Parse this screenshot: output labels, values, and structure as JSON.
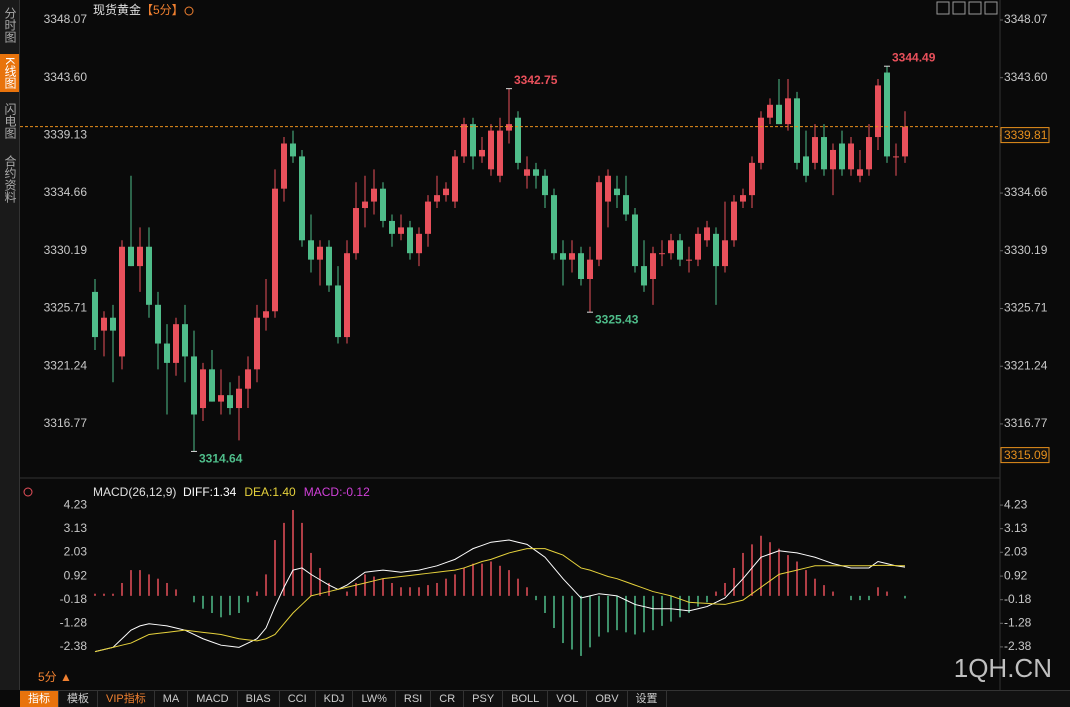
{
  "sidebar": [
    "分时图",
    "K线图",
    "闪电图",
    "合约资料"
  ],
  "toolbar": [
    "指标",
    "模板",
    "VIP指标",
    "MA",
    "MACD",
    "BIAS",
    "CCI",
    "KDJ",
    "LW%",
    "RSI",
    "CR",
    "PSY",
    "BOLL",
    "VOL",
    "OBV",
    "设置"
  ],
  "period_button": "5分 ▲",
  "watermark": "1QH.CN",
  "chart_data": [
    {
      "type": "candlestick",
      "title": "现货黄金",
      "period": "【5分】",
      "up_color": "#e8505b",
      "down_color": "#4fbd8a",
      "ylim": [
        3313.2,
        3349.0
      ],
      "yticks": [
        3348.07,
        {
          "value": 3343.6,
          "label": "3343.60"
        },
        3339.13,
        3334.66,
        3330.19,
        3325.71,
        3321.24,
        3316.77
      ],
      "last_price": 3339.81,
      "crosshair_price": 3315.09,
      "annotations": [
        3344.49,
        3342.75,
        3314.64,
        3325.43
      ],
      "series": {
        "open": [
          3327,
          3324,
          3325,
          3322,
          3330.5,
          3329,
          3330.5,
          3326,
          3323,
          3321.5,
          3324.5,
          3322,
          3318,
          3321,
          3318.5,
          3319,
          3318,
          3319.5,
          3321,
          3325,
          3325.5,
          3335,
          3338.5,
          3337.5,
          3331,
          3329.5,
          3330.5,
          3327.5,
          3323.5,
          3330,
          3333.5,
          3334,
          3335,
          3332.5,
          3331.5,
          3332,
          3330,
          3331.5,
          3334,
          3334.5,
          3334,
          3337.5,
          3340,
          3337.5,
          3336.5,
          3336,
          3339.5,
          3340.5,
          3336,
          3336.5,
          3336,
          3334.5,
          3330,
          3329.5,
          3330,
          3328,
          3329.5,
          3334,
          3335,
          3334.5,
          3333,
          3329,
          3328,
          3330,
          3330,
          3331,
          3329.5,
          3329.5,
          3331,
          3331.5,
          3329,
          3331,
          3334,
          3334.5,
          3337,
          3340.5,
          3341.5,
          3340,
          3342,
          3337.5,
          3337,
          3339,
          3336.5,
          3338.5,
          3336.5,
          3336,
          3336.5,
          3339,
          3344,
          3337.5,
          3337.5
        ],
        "high": [
          3328,
          3325.5,
          3326,
          3331,
          3336,
          3332,
          3332,
          3327,
          3324.5,
          3325,
          3326,
          3324,
          3321.5,
          3322.5,
          3321,
          3320,
          3320.5,
          3322,
          3326,
          3328,
          3336.5,
          3339,
          3339.5,
          3338,
          3333,
          3331,
          3331,
          3329,
          3331,
          3335.5,
          3336,
          3336.5,
          3335.5,
          3333,
          3333,
          3332.5,
          3332,
          3334.5,
          3336,
          3335.5,
          3338,
          3340.5,
          3340.5,
          3339,
          3340,
          3340.5,
          3342.75,
          3341,
          3337.5,
          3337,
          3336.5,
          3335,
          3331,
          3331,
          3330.5,
          3330.5,
          3336,
          3336.5,
          3336,
          3336,
          3333.5,
          3331,
          3330.5,
          3331,
          3331.5,
          3331.5,
          3330.5,
          3332,
          3332.5,
          3332,
          3334,
          3334.5,
          3335,
          3337.5,
          3341,
          3342,
          3343.5,
          3343.5,
          3342.5,
          3339.5,
          3340,
          3340,
          3338.5,
          3339.5,
          3339,
          3338,
          3340,
          3343.5,
          3344.49,
          3338.5,
          3341
        ],
        "low": [
          3322.5,
          3322,
          3320,
          3321,
          3329,
          3327,
          3325,
          3321,
          3317.5,
          3320.5,
          3320,
          3314.64,
          3317,
          3318.5,
          3317.5,
          3317.5,
          3315.5,
          3318,
          3320,
          3324,
          3325,
          3334,
          3337,
          3330.5,
          3328.5,
          3327.5,
          3327,
          3323,
          3323,
          3329.5,
          3332,
          3333,
          3332,
          3330.5,
          3331,
          3329.5,
          3329,
          3330.5,
          3333.5,
          3334,
          3333.5,
          3337,
          3336.5,
          3337,
          3336,
          3335.5,
          3338.5,
          3336.5,
          3335,
          3335,
          3333.5,
          3329.5,
          3327.5,
          3328.5,
          3327.5,
          3325.43,
          3329,
          3332,
          3333.5,
          3332.5,
          3328.5,
          3327,
          3326,
          3329,
          3329.5,
          3329,
          3328.5,
          3329,
          3330.5,
          3326,
          3328.5,
          3330.5,
          3333.5,
          3333.5,
          3336.5,
          3340,
          3340,
          3339.5,
          3336.5,
          3335.5,
          3336.5,
          3336,
          3334.5,
          3336,
          3336,
          3335.5,
          3336,
          3338,
          3337,
          3336,
          3337
        ],
        "close": [
          3323.5,
          3325,
          3324,
          3330.5,
          3329,
          3330.5,
          3326,
          3323,
          3321.5,
          3324.5,
          3322,
          3317.5,
          3321,
          3318.5,
          3319,
          3318,
          3319.5,
          3321,
          3325,
          3325.5,
          3335,
          3338.5,
          3337.5,
          3331,
          3329.5,
          3330.5,
          3327.5,
          3323.5,
          3330,
          3333.5,
          3334,
          3335,
          3332.5,
          3331.5,
          3332,
          3330,
          3331.5,
          3334,
          3334.5,
          3335,
          3337.5,
          3340,
          3337.5,
          3338,
          3339.5,
          3339.5,
          3340,
          3337,
          3336.5,
          3336,
          3334.5,
          3330,
          3329.5,
          3330,
          3328,
          3329.5,
          3335.5,
          3336,
          3334.5,
          3333,
          3329,
          3327.5,
          3330,
          3330,
          3331,
          3329.5,
          3329.5,
          3331.5,
          3332,
          3329,
          3331,
          3334,
          3334.5,
          3337,
          3340.5,
          3341.5,
          3340,
          3342,
          3337,
          3336,
          3339,
          3336.5,
          3338,
          3336.5,
          3338.5,
          3336.5,
          3339,
          3343,
          3337.5,
          3337.5,
          3339.81
        ]
      }
    },
    {
      "type": "macd",
      "indicator": "MACD(26,12,9)",
      "ylim": [
        -2.99,
        4.56
      ],
      "yticks": [
        4.23,
        3.13,
        2.03,
        0.92,
        -0.18,
        -1.28,
        -2.38
      ],
      "up_color": "#e8505b",
      "down_color": "#4fbd8a",
      "series": [
        {
          "label": "DIFF:1.34",
          "color": "#ffffff",
          "values": [
            -2.6,
            -2.5,
            -2.4,
            -2.0,
            -1.6,
            -1.4,
            -1.3,
            -1.35,
            -1.4,
            -1.5,
            -1.6,
            -1.8,
            -2.0,
            -2.15,
            -2.3,
            -2.35,
            -2.4,
            -2.2,
            -2.0,
            -1.5,
            -0.5,
            0.4,
            1.2,
            1.3,
            1.0,
            0.75,
            0.5,
            0.3,
            0.5,
            0.8,
            1.1,
            1.15,
            1.2,
            1.15,
            1.1,
            1.15,
            1.2,
            1.3,
            1.4,
            1.55,
            1.7,
            1.95,
            2.2,
            2.35,
            2.5,
            2.55,
            2.6,
            2.5,
            2.4,
            2.1,
            1.8,
            1.3,
            0.8,
            0.35,
            -0.1,
            0.0,
            0.1,
            0.05,
            0.0,
            -0.2,
            -0.4,
            -0.5,
            -0.6,
            -0.6,
            -0.6,
            -0.65,
            -0.7,
            -0.6,
            -0.5,
            -0.3,
            -0.1,
            0.35,
            0.8,
            1.3,
            1.8,
            1.95,
            2.1,
            2.05,
            2.0,
            1.9,
            1.8,
            1.65,
            1.5,
            1.4,
            1.3,
            1.3,
            1.3,
            1.6,
            1.5,
            1.4,
            1.34
          ]
        },
        {
          "label": "DEA:1.40",
          "color": "#e6d23c",
          "values": [
            -2.6,
            -2.5,
            -2.4,
            -2.3,
            -2.2,
            -2.0,
            -1.8,
            -1.75,
            -1.7,
            -1.65,
            -1.6,
            -1.65,
            -1.7,
            -1.75,
            -1.8,
            -1.9,
            -2.0,
            -2.05,
            -2.1,
            -2.0,
            -1.8,
            -1.3,
            -0.8,
            -0.4,
            0.0,
            0.1,
            0.2,
            0.3,
            0.4,
            0.5,
            0.6,
            0.7,
            0.8,
            0.85,
            0.9,
            0.95,
            1.0,
            1.05,
            1.1,
            1.15,
            1.2,
            1.3,
            1.45,
            1.6,
            1.7,
            1.85,
            2.0,
            2.1,
            2.2,
            2.2,
            2.2,
            2.05,
            1.9,
            1.6,
            1.3,
            1.2,
            1.05,
            0.9,
            0.8,
            0.65,
            0.5,
            0.35,
            0.2,
            0.1,
            0.0,
            -0.15,
            -0.3,
            -0.33,
            -0.35,
            -0.38,
            -0.4,
            -0.3,
            -0.2,
            0.1,
            0.4,
            0.7,
            1.0,
            1.1,
            1.2,
            1.3,
            1.4,
            1.4,
            1.4,
            1.4,
            1.4,
            1.4,
            1.4,
            1.42,
            1.42,
            1.41,
            1.4
          ]
        },
        {
          "label": "MACD:-0.12",
          "color": "#d040d8",
          "values": [
            0.1,
            0.1,
            0.1,
            0.6,
            1.2,
            1.2,
            1.0,
            0.8,
            0.6,
            0.3,
            0.0,
            -0.3,
            -0.6,
            -0.8,
            -1.0,
            -0.9,
            -0.8,
            -0.3,
            0.2,
            1.0,
            2.6,
            3.4,
            4.0,
            3.4,
            2.0,
            1.3,
            0.6,
            0.0,
            0.2,
            0.6,
            1.0,
            0.9,
            0.8,
            0.6,
            0.4,
            0.4,
            0.4,
            0.5,
            0.6,
            0.8,
            1.0,
            1.3,
            1.5,
            1.5,
            1.6,
            1.4,
            1.2,
            0.8,
            0.4,
            -0.2,
            -0.8,
            -1.5,
            -2.2,
            -2.5,
            -2.8,
            -2.4,
            -1.9,
            -1.7,
            -1.6,
            -1.7,
            -1.8,
            -1.7,
            -1.6,
            -1.4,
            -1.2,
            -1.0,
            -0.8,
            -0.5,
            -0.3,
            0.2,
            0.6,
            1.3,
            2.0,
            2.4,
            2.8,
            2.5,
            2.2,
            1.9,
            1.6,
            1.2,
            0.8,
            0.5,
            0.2,
            0.0,
            -0.2,
            -0.2,
            -0.2,
            0.4,
            0.2,
            0.0,
            -0.12
          ]
        }
      ]
    }
  ]
}
